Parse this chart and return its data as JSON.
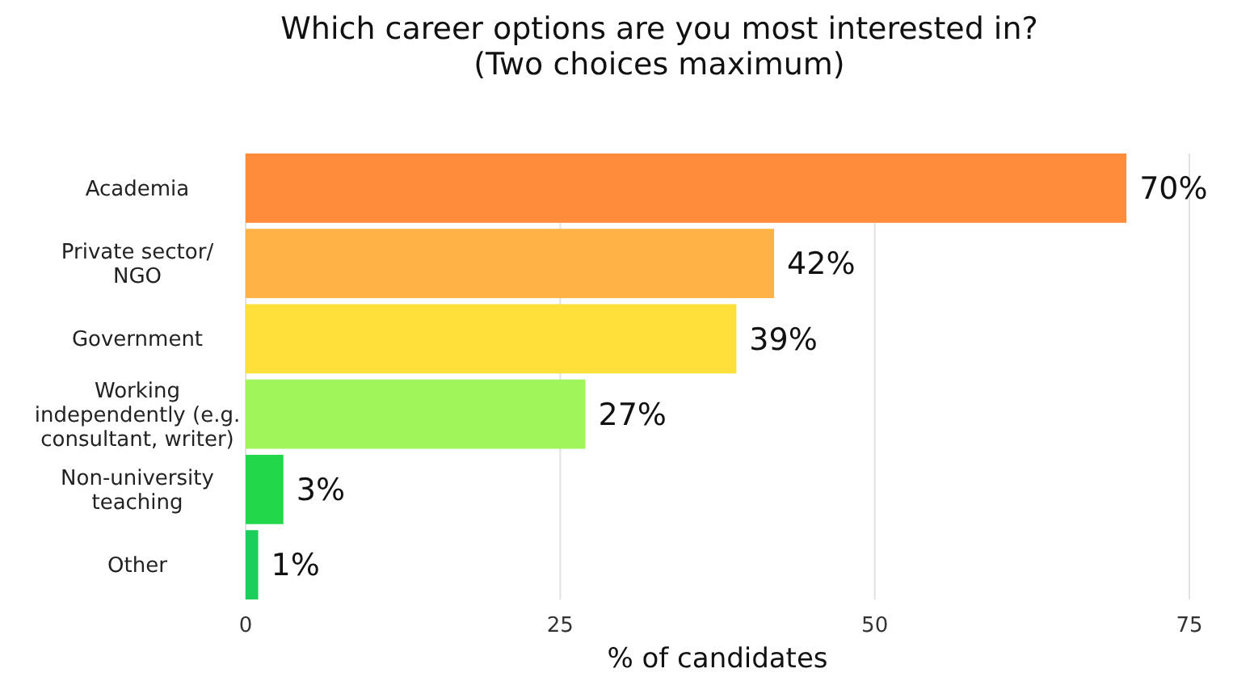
{
  "chart_data": {
    "type": "bar",
    "orientation": "horizontal",
    "title": "Which career options are you most interested in?\n(Two choices maximum)",
    "xlabel": "% of candidates",
    "categories": [
      "Academia",
      "Private sector/\nNGO",
      "Government",
      "Working\nindependently (e.g.\nconsultant, writer)",
      "Non-university\nteaching",
      "Other"
    ],
    "values": [
      70,
      42,
      39,
      27,
      3,
      1
    ],
    "colors": [
      "#ff8c3a",
      "#ffb347",
      "#ffe03a",
      "#a0f55a",
      "#22d84a",
      "#1ccf5c"
    ],
    "value_labels": [
      "70%",
      "42%",
      "39%",
      "27%",
      "3%",
      "1%"
    ],
    "xlim": [
      0,
      75
    ],
    "xticks": [
      0,
      25,
      50,
      75
    ],
    "grid": "x"
  }
}
